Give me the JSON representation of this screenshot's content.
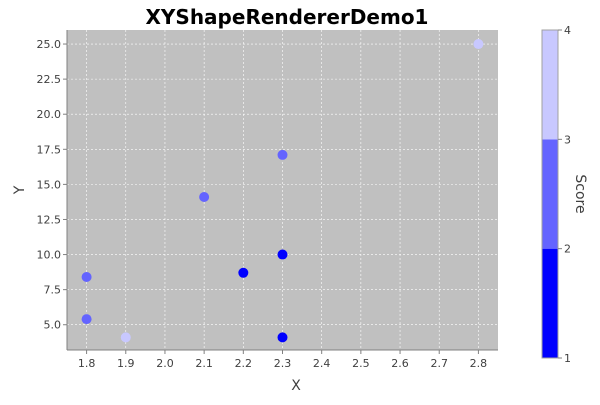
{
  "chart_data": {
    "type": "scatter",
    "title": "XYShapeRendererDemo1",
    "xlabel": "X",
    "ylabel": "Y",
    "xlim": [
      1.75,
      2.85
    ],
    "ylim": [
      3.2,
      26.0
    ],
    "x_ticks": [
      "1.8",
      "1.9",
      "2.0",
      "2.1",
      "2.2",
      "2.3",
      "2.4",
      "2.5",
      "2.6",
      "2.7",
      "2.8"
    ],
    "y_ticks": [
      "5.0",
      "7.5",
      "10.0",
      "12.5",
      "15.0",
      "17.5",
      "20.0",
      "22.5",
      "25.0"
    ],
    "grid": true,
    "plot_background": "#c0c0c0",
    "points": [
      {
        "x": 1.8,
        "y": 5.4,
        "score": 2.5
      },
      {
        "x": 1.8,
        "y": 8.4,
        "score": 2.5
      },
      {
        "x": 1.9,
        "y": 4.1,
        "score": 3.7
      },
      {
        "x": 2.1,
        "y": 14.1,
        "score": 2.5
      },
      {
        "x": 2.2,
        "y": 8.7,
        "score": 1.0
      },
      {
        "x": 2.3,
        "y": 4.1,
        "score": 1.0
      },
      {
        "x": 2.3,
        "y": 10.0,
        "score": 1.0
      },
      {
        "x": 2.3,
        "y": 17.1,
        "score": 2.5
      },
      {
        "x": 2.8,
        "y": 25.0,
        "score": 3.7
      }
    ],
    "paint_scale": {
      "label": "Score",
      "range": [
        1,
        4
      ],
      "ticks": [
        "1",
        "2",
        "3",
        "4"
      ],
      "bands": [
        {
          "from": 1,
          "to": 2,
          "color": "#0000ff"
        },
        {
          "from": 2,
          "to": 3,
          "color": "#6464ff"
        },
        {
          "from": 3,
          "to": 4,
          "color": "#c8c8ff"
        }
      ]
    }
  }
}
